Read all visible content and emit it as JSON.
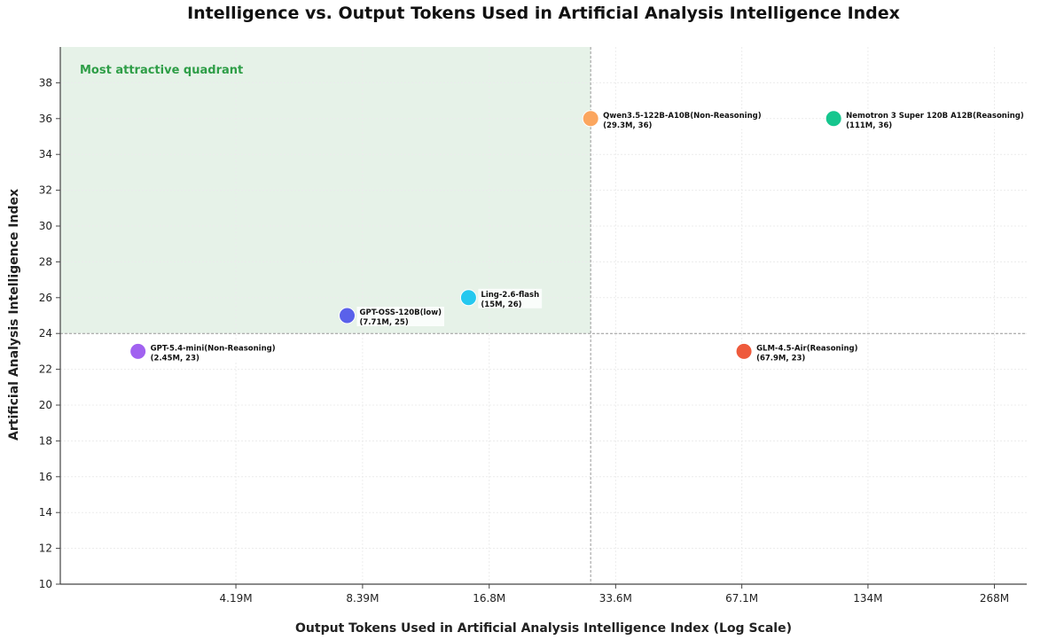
{
  "chart_data": {
    "type": "scatter",
    "title": "Intelligence vs. Output Tokens Used in Artificial Analysis Intelligence Index",
    "xlabel": "Output Tokens Used in Artificial Analysis Intelligence Index (Log Scale)",
    "ylabel": "Artificial Analysis Intelligence Index",
    "x_scale": "log",
    "x_unit": "million tokens",
    "xlim": [
      1.6,
      320
    ],
    "ylim": [
      10,
      40
    ],
    "x_ticks": [
      4.19,
      8.39,
      16.8,
      33.6,
      67.1,
      134,
      268
    ],
    "x_tick_labels": [
      "4.19M",
      "8.39M",
      "16.8M",
      "33.6M",
      "67.1M",
      "134M",
      "268M"
    ],
    "y_ticks": [
      10,
      12,
      14,
      16,
      18,
      20,
      22,
      24,
      26,
      28,
      30,
      32,
      34,
      36,
      38
    ],
    "grid": true,
    "reference_lines": {
      "x": 29.3,
      "y": 24
    },
    "quadrant": {
      "label": "Most attractive quadrant",
      "color": "#e6f2e8"
    },
    "points": [
      {
        "name": "GPT-5.4-mini(Non-Reasoning)",
        "annotation": "(2.45M, 23)",
        "x": 2.45,
        "y": 23,
        "color": "#a162f0"
      },
      {
        "name": "GPT-OSS-120B(low)",
        "annotation": "(7.71M, 25)",
        "x": 7.71,
        "y": 25,
        "color": "#5a61ea"
      },
      {
        "name": "Ling-2.6-flash",
        "annotation": "(15M, 26)",
        "x": 15,
        "y": 26,
        "color": "#25c8ef"
      },
      {
        "name": "Qwen3.5-122B-A10B(Non-Reasoning)",
        "annotation": "(29.3M, 36)",
        "x": 29.3,
        "y": 36,
        "color": "#fba65f"
      },
      {
        "name": "GLM-4.5-Air(Reasoning)",
        "annotation": "(67.9M, 23)",
        "x": 67.9,
        "y": 23,
        "color": "#ee5a3c"
      },
      {
        "name": "Nemotron 3 Super 120B A12B(Reasoning)",
        "annotation": "(111M, 36)",
        "x": 111,
        "y": 36,
        "color": "#16c68e"
      }
    ]
  }
}
